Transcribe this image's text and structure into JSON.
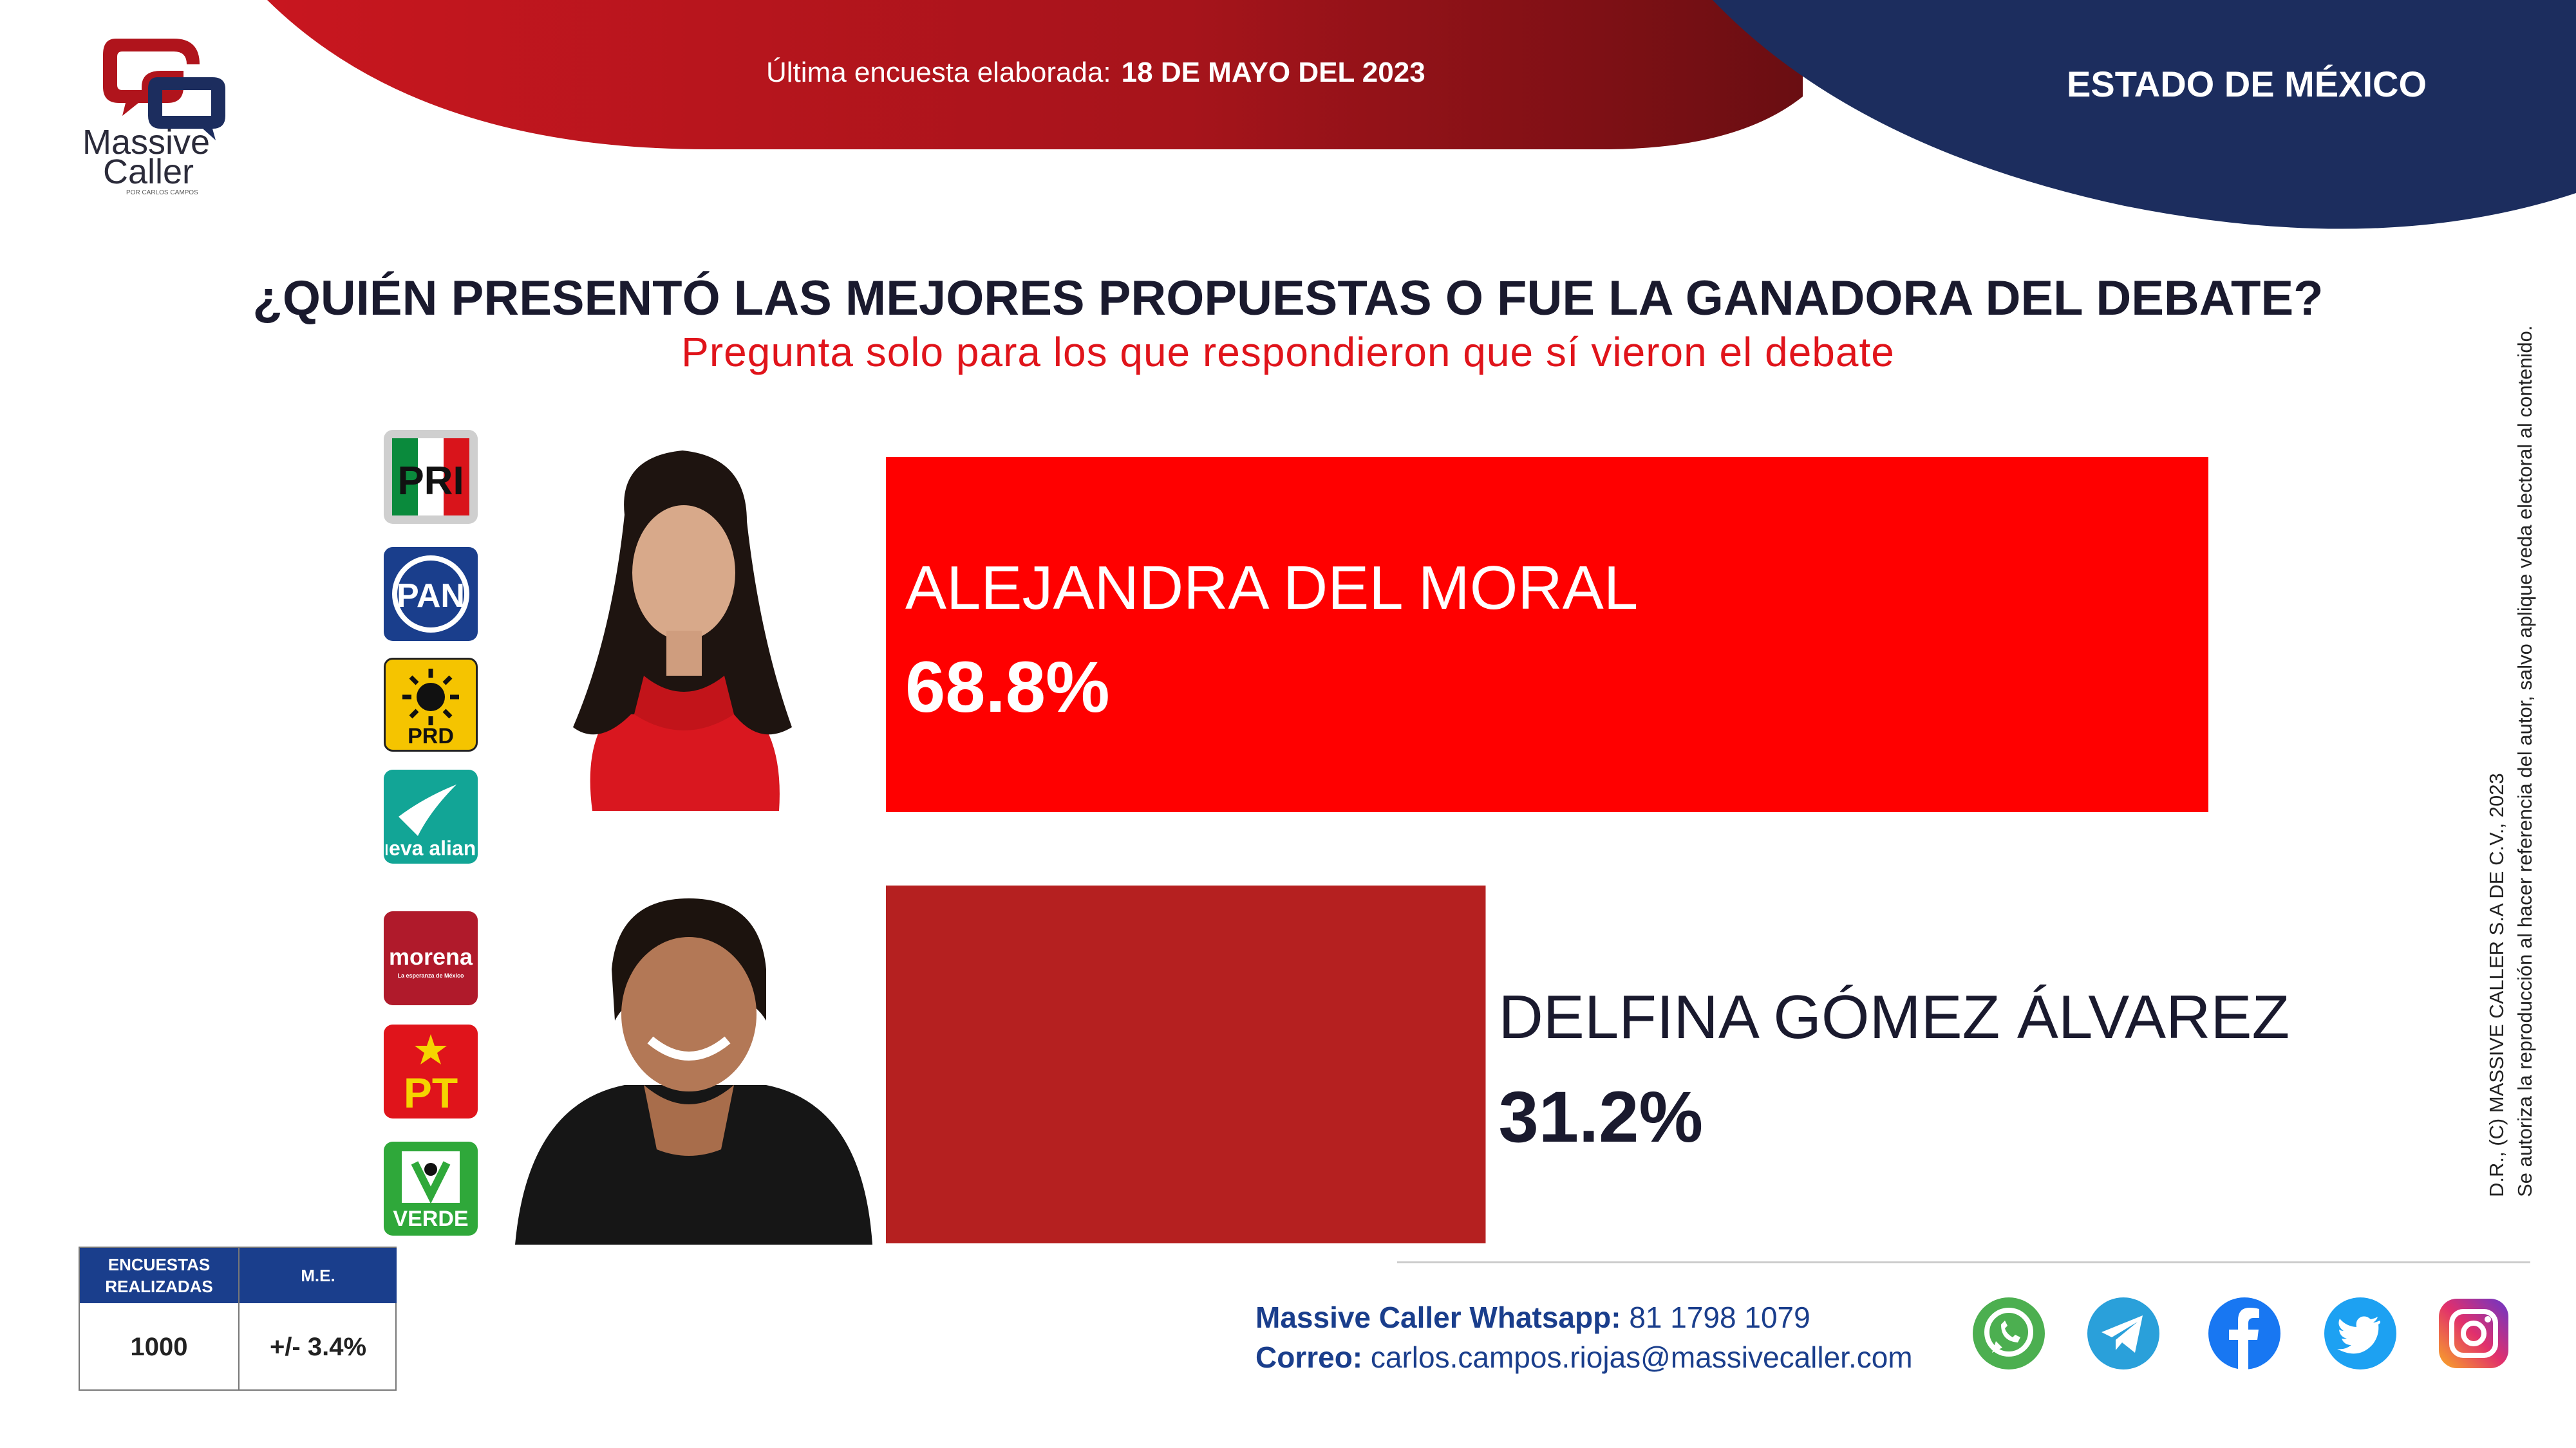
{
  "header": {
    "date_label": "Última encuesta elaborada:",
    "date_value": "18 DE MAYO DEL 2023",
    "state": "ESTADO DE MÉXICO"
  },
  "logo": {
    "line1": "Massive",
    "line2": "Caller",
    "sub": "POR CARLOS CAMPOS"
  },
  "question": {
    "title": "¿QUIÉN PRESENTÓ LAS MEJORES PROPUESTAS O FUE LA GANADORA DEL DEBATE?",
    "subtitle": "Pregunta solo para los que respondieron que sí vieron el debate"
  },
  "parties": {
    "coalition1": [
      "PRI",
      "PAN",
      "PRD",
      "nueva alianza"
    ],
    "coalition2": [
      "morena",
      "PT",
      "VERDE"
    ],
    "morena_tagline": "La esperanza de México"
  },
  "chart_data": {
    "type": "bar",
    "orientation": "horizontal",
    "title": "¿QUIÉN PRESENTÓ LAS MEJORES PROPUESTAS O FUE LA GANADORA DEL DEBATE?",
    "categories": [
      "ALEJANDRA DEL MORAL",
      "DELFINA GÓMEZ ÁLVAREZ"
    ],
    "values": [
      68.8,
      31.2
    ],
    "labels": [
      "68.8%",
      "31.2%"
    ],
    "colors": [
      "#ff0000",
      "#b52020"
    ],
    "xlim": [
      0,
      68.8
    ]
  },
  "survey": {
    "col1_header": "ENCUESTAS REALIZADAS",
    "col2_header": "M.E.",
    "col1_value": "1000",
    "col2_value": "+/- 3.4%"
  },
  "copyright": {
    "line1": "D.R., (C) MASSIVE CALLER S.A DE C.V., 2023",
    "line2": "Se autoriza la reproducción al hacer referencia del autor, salvo aplique veda electoral al contenido."
  },
  "contact": {
    "whatsapp_label": "Massive Caller Whatsapp:",
    "whatsapp_value": "81 1798 1079",
    "email_label": "Correo:",
    "email_value": "carlos.campos.riojas@massivecaller.com"
  },
  "social_icons": [
    "whatsapp-icon",
    "telegram-icon",
    "facebook-icon",
    "twitter-icon",
    "instagram-icon"
  ],
  "colors": {
    "red_header": "#b0141c",
    "navy_header": "#1c2d5e",
    "blue_table": "#1a3e8c",
    "subtitle_red": "#e0141b"
  }
}
